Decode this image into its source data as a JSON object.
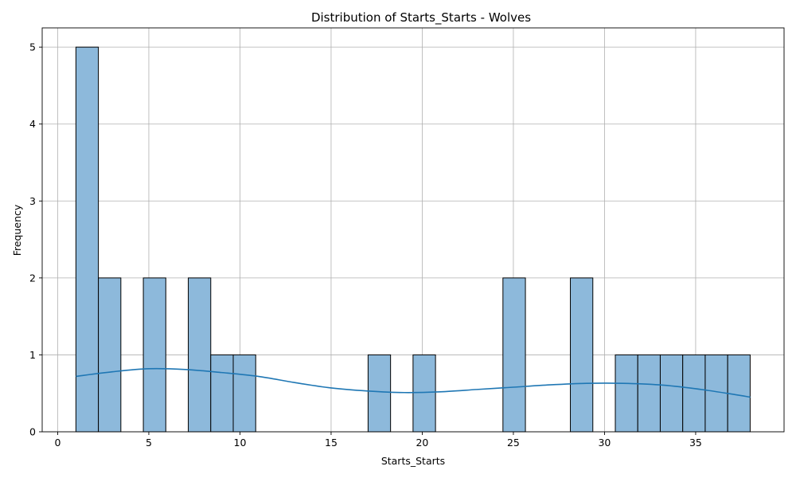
{
  "chart_data": {
    "type": "bar",
    "title": "Distribution of Starts_Starts - Wolves",
    "xlabel": "Starts_Starts",
    "ylabel": "Frequency",
    "xlim": [
      -0.85,
      39.85
    ],
    "ylim": [
      0,
      5.25
    ],
    "x_ticks": [
      0,
      5,
      10,
      15,
      20,
      25,
      30,
      35
    ],
    "y_ticks": [
      0,
      1,
      2,
      3,
      4,
      5
    ],
    "grid": true,
    "bar_color": "#8db9db",
    "bar_edge_color": "#000000",
    "kde_color": "#1f77b4",
    "bin_start": 1,
    "bin_width": 1.233,
    "counts": [
      5,
      2,
      0,
      2,
      0,
      2,
      1,
      1,
      0,
      0,
      0,
      0,
      0,
      1,
      0,
      1,
      0,
      0,
      0,
      2,
      0,
      0,
      2,
      0,
      1,
      1,
      1,
      1,
      1,
      1
    ],
    "kde": {
      "x": [
        1,
        3,
        5,
        7,
        9,
        11,
        13,
        15,
        17,
        19,
        21,
        23,
        25,
        27,
        29,
        31,
        33,
        35,
        37,
        38
      ],
      "y": [
        0.72,
        0.78,
        0.82,
        0.81,
        0.77,
        0.72,
        0.64,
        0.57,
        0.53,
        0.51,
        0.52,
        0.55,
        0.58,
        0.61,
        0.63,
        0.63,
        0.61,
        0.56,
        0.49,
        0.45
      ]
    }
  }
}
